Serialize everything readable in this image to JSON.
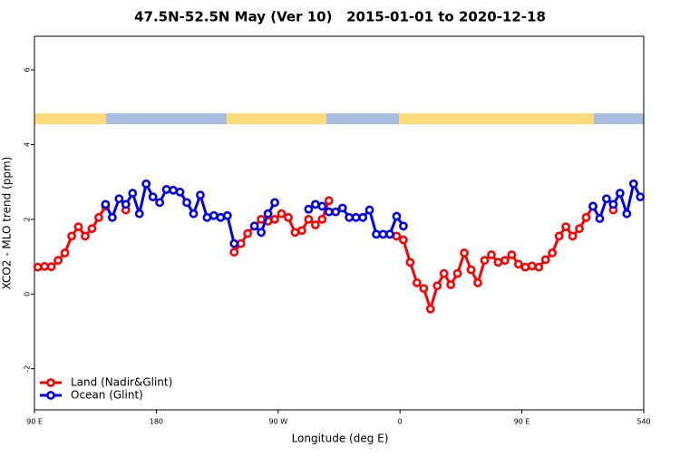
{
  "chart_data": {
    "type": "line",
    "title": "47.5N-52.5N May (Ver 10)   2015-01-01 to 2020-12-18",
    "x_label": "Longitude (deg E)",
    "y_label": "XCO2 - MLO trend (ppm)",
    "xlim": [
      90,
      540
    ],
    "ylim": [
      -3.1,
      6.9
    ],
    "xticks": [
      {
        "value": 90,
        "label": "90 E"
      },
      180,
      {
        "value": 270,
        "label": "90 W"
      },
      {
        "value": 360,
        "label": "0"
      },
      {
        "value": 450,
        "label": "90 E"
      },
      540
    ],
    "yticks": [
      -2,
      0,
      2,
      4,
      6
    ],
    "legend": "bottom-left",
    "x": [
      92.5,
      97.5,
      102.5,
      107.5,
      112.5,
      117.5,
      122.5,
      127.5,
      132.5,
      137.5,
      142.5,
      147.5,
      152.5,
      157.5,
      162.5,
      167.5,
      172.5,
      177.5,
      182.5,
      187.5,
      192.5,
      197.5,
      202.5,
      207.5,
      212.5,
      217.5,
      222.5,
      227.5,
      232.5,
      237.5,
      242.5,
      247.5,
      252.5,
      257.5,
      262.5,
      267.5,
      272.5,
      277.5,
      282.5,
      287.5,
      292.5,
      297.5,
      302.5,
      307.5,
      312.5,
      317.5,
      322.5,
      327.5,
      332.5,
      337.5,
      342.5,
      347.5,
      352.5,
      357.5,
      362.5,
      367.5,
      372.5,
      377.5,
      382.5,
      387.5,
      392.5,
      397.5,
      402.5,
      407.5,
      412.5,
      417.5,
      422.5,
      427.5,
      432.5,
      437.5,
      442.5,
      447.5,
      452.5,
      457.5,
      462.5,
      467.5,
      472.5,
      477.5,
      482.5,
      487.5,
      492.5,
      497.5,
      502.5,
      507.5,
      512.5,
      517.5,
      522.5,
      527.5,
      532.5,
      537.5
    ],
    "series": [
      {
        "name": "Land (Nadir&Glint)",
        "color": "#ff0000",
        "values": [
          0.72,
          0.74,
          0.73,
          0.9,
          1.1,
          1.55,
          1.8,
          1.55,
          1.75,
          2.05,
          2.35,
          null,
          null,
          2.25,
          null,
          null,
          null,
          null,
          null,
          null,
          null,
          null,
          null,
          null,
          null,
          null,
          null,
          null,
          null,
          1.12,
          1.35,
          1.62,
          1.82,
          2.0,
          1.95,
          2.0,
          2.15,
          2.05,
          1.65,
          1.7,
          2.0,
          1.85,
          2.0,
          2.5,
          null,
          null,
          null,
          null,
          null,
          null,
          null,
          null,
          1.6,
          1.55,
          1.45,
          0.85,
          0.3,
          0.15,
          -0.4,
          0.22,
          0.55,
          0.25,
          0.55,
          1.1,
          0.65,
          0.3,
          0.9,
          1.05,
          0.85,
          0.9,
          1.05,
          0.8,
          0.72,
          0.75,
          0.72,
          0.92,
          1.1,
          1.55,
          1.8,
          1.55,
          1.75,
          2.05,
          2.35,
          null,
          null,
          2.25,
          null,
          null,
          null,
          null
        ]
      },
      {
        "name": "Ocean (Glint)",
        "color": "#0000ee",
        "values": [
          null,
          null,
          null,
          null,
          null,
          null,
          null,
          null,
          null,
          null,
          2.4,
          2.05,
          2.55,
          2.4,
          2.7,
          2.15,
          2.95,
          2.6,
          2.45,
          2.8,
          2.78,
          2.73,
          2.45,
          2.15,
          2.65,
          2.05,
          2.1,
          2.05,
          2.1,
          1.35,
          null,
          null,
          1.82,
          1.65,
          2.15,
          2.45,
          null,
          null,
          null,
          null,
          2.27,
          2.4,
          2.35,
          2.2,
          2.2,
          2.3,
          2.05,
          2.05,
          2.05,
          2.25,
          1.6,
          1.6,
          1.6,
          2.08,
          1.82,
          null,
          null,
          null,
          null,
          null,
          null,
          null,
          null,
          null,
          null,
          null,
          null,
          null,
          null,
          null,
          null,
          null,
          null,
          null,
          null,
          null,
          null,
          null,
          null,
          null,
          null,
          null,
          2.35,
          2.02,
          2.55,
          2.4,
          2.7,
          2.15,
          2.95,
          2.6
        ]
      }
    ]
  }
}
